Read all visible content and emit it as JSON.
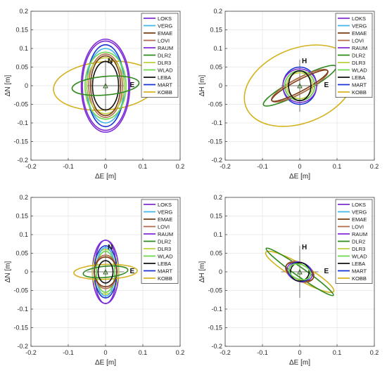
{
  "legend_entries": [
    {
      "name": "LOKS",
      "color": "#7d2ed0"
    },
    {
      "name": "VERG",
      "color": "#3fb6e8"
    },
    {
      "name": "EMAE",
      "color": "#7a3b12"
    },
    {
      "name": "LOVI",
      "color": "#b06a4b"
    },
    {
      "name": "RAUM",
      "color": "#7f2ad8"
    },
    {
      "name": "DLR2",
      "color": "#2f8a1e"
    },
    {
      "name": "DLR3",
      "color": "#b9d23a"
    },
    {
      "name": "WLAD",
      "color": "#6ed64a"
    },
    {
      "name": "LEBA",
      "color": "#111111"
    },
    {
      "name": "MART",
      "color": "#1631d6"
    },
    {
      "name": "KOBB",
      "color": "#d4b21e"
    }
  ],
  "chart_data": [
    {
      "type": "scatter",
      "xlabel": "ΔE [m]",
      "ylabel": "ΔN [m]",
      "xlim": [
        -0.2,
        0.2
      ],
      "ylim": [
        -0.2,
        0.2
      ],
      "xticks": [
        "-0.2",
        "-0.1",
        "0",
        "0.1",
        "0.2"
      ],
      "yticks": [
        "0.2",
        "0.15",
        "0.1",
        "0.05",
        "0",
        "-0.05",
        "-0.1",
        "-0.15",
        "-0.2"
      ],
      "grid": true,
      "legend": "top-right",
      "axis_labels": {
        "vertical": "N",
        "horizontal": "E"
      },
      "series": [
        {
          "name": "LOKS",
          "a": 0.062,
          "b": 0.12,
          "angle": 0
        },
        {
          "name": "VERG",
          "a": 0.05,
          "b": 0.1,
          "angle": 0
        },
        {
          "name": "EMAE",
          "a": 0.04,
          "b": 0.08,
          "angle": 0
        },
        {
          "name": "LOVI",
          "a": 0.045,
          "b": 0.085,
          "angle": 0
        },
        {
          "name": "RAUM",
          "a": 0.065,
          "b": 0.125,
          "angle": 0
        },
        {
          "name": "DLR2",
          "a": 0.09,
          "b": 0.025,
          "angle": 5
        },
        {
          "name": "DLR3",
          "a": 0.05,
          "b": 0.075,
          "angle": 0
        },
        {
          "name": "WLAD",
          "a": 0.055,
          "b": 0.09,
          "angle": 0
        },
        {
          "name": "LEBA",
          "a": 0.035,
          "b": 0.065,
          "angle": 0
        },
        {
          "name": "MART",
          "a": 0.05,
          "b": 0.11,
          "angle": 0
        },
        {
          "name": "KOBB",
          "a": 0.14,
          "b": 0.065,
          "angle": 5
        }
      ]
    },
    {
      "type": "scatter",
      "xlabel": "ΔE [m]",
      "ylabel": "ΔH [m]",
      "xlim": [
        -0.2,
        0.2
      ],
      "ylim": [
        -0.2,
        0.2
      ],
      "xticks": [
        "-0.2",
        "-0.1",
        "0",
        "0.1",
        "0.2"
      ],
      "yticks": [
        "0.2",
        "0.15",
        "0.1",
        "0.05",
        "0",
        "-0.05",
        "-0.1",
        "-0.15",
        "-0.2"
      ],
      "grid": true,
      "legend": "top-right",
      "axis_labels": {
        "vertical": "H",
        "horizontal": "E"
      },
      "series": [
        {
          "name": "LOKS",
          "a": 0.045,
          "b": 0.045,
          "angle": 0
        },
        {
          "name": "VERG",
          "a": 0.04,
          "b": 0.04,
          "angle": 0
        },
        {
          "name": "EMAE",
          "a": 0.085,
          "b": 0.015,
          "angle": 28
        },
        {
          "name": "LOVI",
          "a": 0.085,
          "b": 0.02,
          "angle": 28
        },
        {
          "name": "RAUM",
          "a": 0.04,
          "b": 0.04,
          "angle": 0
        },
        {
          "name": "DLR2",
          "a": 0.11,
          "b": 0.02,
          "angle": 28
        },
        {
          "name": "DLR3",
          "a": 0.035,
          "b": 0.035,
          "angle": 0
        },
        {
          "name": "WLAD",
          "a": 0.04,
          "b": 0.04,
          "angle": 0
        },
        {
          "name": "LEBA",
          "a": 0.03,
          "b": 0.04,
          "angle": 0
        },
        {
          "name": "MART",
          "a": 0.045,
          "b": 0.05,
          "angle": 0
        },
        {
          "name": "KOBB",
          "a": 0.155,
          "b": 0.1,
          "angle": 22
        }
      ]
    },
    {
      "type": "scatter",
      "xlabel": "ΔE [m]",
      "ylabel": "ΔN [m]",
      "xlim": [
        -0.2,
        0.2
      ],
      "ylim": [
        -0.2,
        0.2
      ],
      "xticks": [
        "-0.2",
        "-0.1",
        "0",
        "0.1",
        "0.2"
      ],
      "yticks": [
        "0.2",
        "0.15",
        "0.1",
        "0.05",
        "0",
        "-0.05",
        "-0.1",
        "-0.15",
        "-0.2"
      ],
      "grid": true,
      "legend": "top-right",
      "axis_labels": {
        "vertical": "N",
        "horizontal": "E"
      },
      "series": [
        {
          "name": "LOKS",
          "a": 0.03,
          "b": 0.085,
          "angle": 0
        },
        {
          "name": "VERG",
          "a": 0.025,
          "b": 0.065,
          "angle": 0
        },
        {
          "name": "EMAE",
          "a": 0.03,
          "b": 0.04,
          "angle": 0
        },
        {
          "name": "LOVI",
          "a": 0.03,
          "b": 0.045,
          "angle": 0
        },
        {
          "name": "RAUM",
          "a": 0.035,
          "b": 0.085,
          "angle": 0
        },
        {
          "name": "DLR2",
          "a": 0.06,
          "b": 0.015,
          "angle": 5
        },
        {
          "name": "DLR3",
          "a": 0.035,
          "b": 0.06,
          "angle": 0
        },
        {
          "name": "WLAD",
          "a": 0.025,
          "b": 0.055,
          "angle": 0
        },
        {
          "name": "LEBA",
          "a": 0.02,
          "b": 0.03,
          "angle": 0
        },
        {
          "name": "MART",
          "a": 0.03,
          "b": 0.07,
          "angle": 0
        },
        {
          "name": "KOBB",
          "a": 0.085,
          "b": 0.02,
          "angle": 2
        }
      ]
    },
    {
      "type": "scatter",
      "xlabel": "ΔE [m]",
      "ylabel": "ΔH [m]",
      "xlim": [
        -0.2,
        0.2
      ],
      "ylim": [
        -0.2,
        0.2
      ],
      "xticks": [
        "-0.2",
        "-0.1",
        "0",
        "0.1",
        "0.2"
      ],
      "yticks": [
        "0.2",
        "0.15",
        "0.1",
        "0.05",
        "0",
        "-0.05",
        "-0.1",
        "-0.15",
        "-0.2"
      ],
      "grid": true,
      "legend": "top-right",
      "axis_labels": {
        "vertical": "H",
        "horizontal": "E"
      },
      "series": [
        {
          "name": "LOKS",
          "a": 0.035,
          "b": 0.025,
          "angle": -20
        },
        {
          "name": "VERG",
          "a": 0.03,
          "b": 0.02,
          "angle": -20
        },
        {
          "name": "EMAE",
          "a": 0.04,
          "b": 0.02,
          "angle": -25
        },
        {
          "name": "LOVI",
          "a": 0.04,
          "b": 0.025,
          "angle": -25
        },
        {
          "name": "RAUM",
          "a": 0.03,
          "b": 0.025,
          "angle": -20
        },
        {
          "name": "DLR2",
          "a": 0.11,
          "b": 0.012,
          "angle": -35
        },
        {
          "name": "DLR3",
          "a": 0.03,
          "b": 0.02,
          "angle": -20
        },
        {
          "name": "WLAD",
          "a": 0.03,
          "b": 0.02,
          "angle": -20
        },
        {
          "name": "LEBA",
          "a": 0.025,
          "b": 0.025,
          "angle": 0
        },
        {
          "name": "MART",
          "a": 0.03,
          "b": 0.025,
          "angle": -20
        },
        {
          "name": "KOBB",
          "a": 0.105,
          "b": 0.02,
          "angle": -30
        }
      ]
    }
  ]
}
